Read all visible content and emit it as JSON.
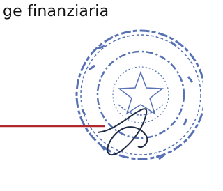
{
  "document": {
    "text": "ge finanziaria"
  }
}
